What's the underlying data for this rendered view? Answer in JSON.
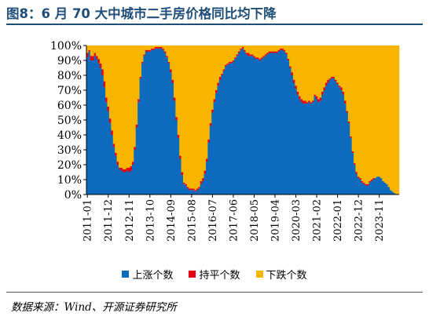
{
  "title": "图8：6 月 70 大中城市二手房价格同比均下降",
  "source": "数据来源：Wind、开源证券研究所",
  "legend": [
    {
      "label": "上涨个数",
      "color": "#0c6bbd"
    },
    {
      "label": "持平个数",
      "color": "#e60012"
    },
    {
      "label": "下跌个数",
      "color": "#f8b500"
    }
  ],
  "chart_data": {
    "type": "bar",
    "stacked": true,
    "percent_stacked": true,
    "ylim": [
      0,
      100
    ],
    "yticks": [
      "0%",
      "10%",
      "20%",
      "30%",
      "40%",
      "50%",
      "60%",
      "70%",
      "80%",
      "90%",
      "100%"
    ],
    "x_tick_labels": [
      "2011-01",
      "2011-12",
      "2012-11",
      "2013-10",
      "2014-09",
      "2015-08",
      "2016-07",
      "2017-06",
      "2018-05",
      "2019-04",
      "2020-03",
      "2021-02",
      "2022-01",
      "2022-12",
      "2023-11"
    ],
    "x_tick_every": 11,
    "legend_position": "bottom",
    "series": [
      {
        "name": "上涨个数",
        "color": "#0c6bbd",
        "values": [
          92,
          96,
          90,
          90,
          93,
          91,
          88,
          85,
          80,
          72,
          62,
          56,
          48,
          40,
          32,
          26,
          20,
          17,
          16,
          15,
          15,
          16,
          15,
          16,
          20,
          30,
          45,
          62,
          78,
          88,
          93,
          96,
          96,
          96,
          97,
          97,
          98,
          98,
          98,
          98,
          97,
          95,
          92,
          88,
          82,
          75,
          63,
          50,
          38,
          24,
          13,
          7,
          6,
          4,
          3,
          3,
          3,
          2,
          3,
          4,
          7,
          9,
          14,
          22,
          35,
          46,
          55,
          62,
          68,
          73,
          77,
          80,
          83,
          86,
          87,
          88,
          88,
          89,
          91,
          93,
          95,
          97,
          98,
          96,
          94,
          93,
          93,
          93,
          92,
          91,
          91,
          90,
          91,
          92,
          93,
          94,
          95,
          95,
          95,
          95,
          95,
          96,
          97,
          97,
          96,
          94,
          90,
          85,
          80,
          75,
          71,
          67,
          64,
          62,
          61,
          61,
          61,
          62,
          61,
          62,
          66,
          64,
          62,
          63,
          67,
          70,
          73,
          75,
          77,
          78,
          78,
          76,
          74,
          72,
          70,
          67,
          61,
          55,
          48,
          38,
          28,
          20,
          14,
          11,
          10,
          8,
          7,
          6,
          6,
          8,
          9,
          10,
          11,
          12,
          12,
          11,
          9,
          8,
          7,
          5,
          3,
          2,
          1,
          0,
          0
        ]
      },
      {
        "name": "持平个数",
        "color": "#e60012",
        "values": [
          3,
          1,
          3,
          3,
          2,
          2,
          3,
          3,
          4,
          4,
          3,
          3,
          3,
          3,
          2,
          2,
          2,
          1,
          2,
          2,
          2,
          2,
          3,
          3,
          2,
          2,
          2,
          2,
          1,
          1,
          1,
          1,
          1,
          1,
          1,
          1,
          1,
          1,
          1,
          1,
          1,
          1,
          1,
          1,
          2,
          2,
          2,
          2,
          2,
          2,
          2,
          1,
          1,
          1,
          1,
          1,
          1,
          1,
          1,
          1,
          2,
          2,
          2,
          2,
          2,
          2,
          2,
          2,
          2,
          2,
          2,
          1,
          1,
          1,
          1,
          1,
          1,
          1,
          1,
          1,
          1,
          1,
          1,
          1,
          1,
          2,
          1,
          1,
          1,
          1,
          1,
          1,
          1,
          1,
          1,
          1,
          1,
          1,
          1,
          1,
          1,
          1,
          1,
          1,
          1,
          1,
          1,
          1,
          2,
          2,
          2,
          2,
          2,
          2,
          2,
          2,
          1,
          1,
          1,
          1,
          1,
          2,
          2,
          2,
          2,
          2,
          2,
          2,
          1,
          1,
          1,
          1,
          1,
          1,
          2,
          2,
          2,
          1,
          1,
          1,
          1,
          1,
          1,
          1,
          1,
          1,
          1,
          1,
          1,
          1,
          1,
          1,
          0,
          0,
          0,
          0,
          0,
          0,
          0,
          0,
          0,
          0,
          0,
          0,
          0
        ]
      },
      {
        "name": "下跌个数",
        "color": "#f8b500",
        "values": [
          5,
          3,
          7,
          7,
          5,
          7,
          9,
          12,
          16,
          24,
          35,
          41,
          49,
          57,
          66,
          72,
          78,
          82,
          82,
          83,
          83,
          82,
          82,
          81,
          78,
          68,
          53,
          36,
          21,
          11,
          6,
          3,
          3,
          3,
          2,
          2,
          1,
          1,
          1,
          1,
          2,
          4,
          7,
          11,
          16,
          23,
          35,
          48,
          60,
          74,
          85,
          92,
          93,
          95,
          96,
          96,
          96,
          97,
          96,
          95,
          91,
          89,
          84,
          76,
          63,
          52,
          43,
          36,
          30,
          25,
          21,
          19,
          16,
          13,
          12,
          11,
          11,
          10,
          8,
          6,
          4,
          2,
          1,
          3,
          5,
          5,
          6,
          6,
          7,
          8,
          8,
          9,
          8,
          7,
          6,
          5,
          4,
          4,
          4,
          4,
          4,
          3,
          2,
          2,
          3,
          5,
          9,
          14,
          18,
          23,
          27,
          31,
          34,
          36,
          37,
          37,
          38,
          37,
          38,
          37,
          33,
          34,
          36,
          35,
          31,
          28,
          25,
          23,
          22,
          21,
          21,
          23,
          25,
          27,
          28,
          31,
          37,
          44,
          51,
          61,
          71,
          79,
          85,
          88,
          89,
          91,
          92,
          93,
          93,
          91,
          90,
          89,
          89,
          88,
          88,
          89,
          91,
          92,
          93,
          95,
          97,
          98,
          99,
          100,
          100
        ]
      }
    ]
  }
}
